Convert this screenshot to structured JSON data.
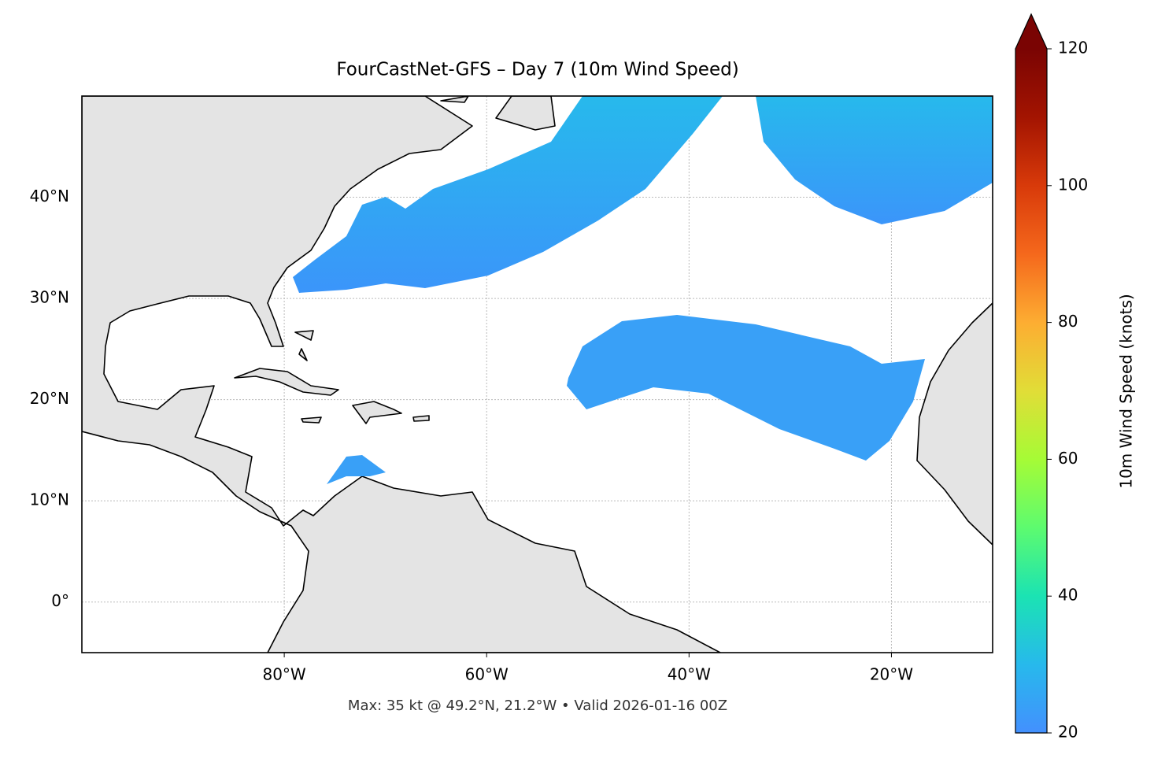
{
  "chart_data": {
    "type": "map",
    "title": "FourCastNet-GFS – Day 7 (10m Wind Speed)",
    "caption": "Max: 35 kt @ 49.2°N, 21.2°W • Valid 2026-01-16 00Z",
    "xlim": [
      -100,
      -10
    ],
    "ylim": [
      -5,
      50
    ],
    "xticks": [
      {
        "value": -80,
        "label": "80°W"
      },
      {
        "value": -60,
        "label": "60°W"
      },
      {
        "value": -40,
        "label": "40°W"
      },
      {
        "value": -20,
        "label": "20°W"
      }
    ],
    "yticks": [
      {
        "value": 0,
        "label": "0°"
      },
      {
        "value": 10,
        "label": "10°N"
      },
      {
        "value": 20,
        "label": "20°N"
      },
      {
        "value": 30,
        "label": "30°N"
      },
      {
        "value": 40,
        "label": "40°N"
      }
    ],
    "grid": true,
    "colorbar": {
      "label": "10m Wind Speed (knots)",
      "lim": [
        20,
        120
      ],
      "ticks": [
        20,
        40,
        60,
        80,
        100,
        120
      ],
      "colors": [
        "#4390fe",
        "#27b9ec",
        "#1be3b3",
        "#5dfb6f",
        "#a6fb36",
        "#e1dd37",
        "#fdad32",
        "#f5681c",
        "#d83a0a",
        "#a31401",
        "#7a0403"
      ]
    }
  }
}
